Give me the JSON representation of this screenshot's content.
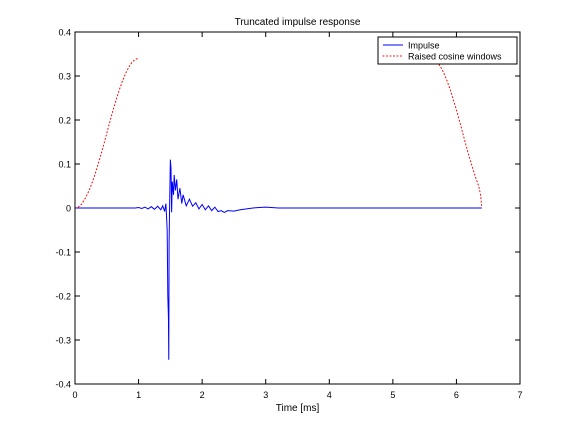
{
  "chart_data": {
    "type": "line",
    "title": "Truncated impulse response",
    "xlabel": "Time [ms]",
    "ylabel": "",
    "xlim": [
      0,
      7
    ],
    "ylim": [
      -0.4,
      0.4
    ],
    "x_ticks": [
      "0",
      "1",
      "2",
      "3",
      "4",
      "5",
      "6",
      "7"
    ],
    "y_ticks": [
      "0.4",
      "0.3",
      "0.2",
      "0.1",
      "0",
      "-0.1",
      "-0.2",
      "-0.3",
      "-0.4"
    ],
    "legend_position": "top-right",
    "series": [
      {
        "name": "Impulse",
        "color": "#0000ff",
        "style": "solid",
        "points": [
          [
            0,
            0
          ],
          [
            0.5,
            0
          ],
          [
            0.95,
            0
          ],
          [
            1.0,
            0.001
          ],
          [
            1.05,
            -0.001
          ],
          [
            1.1,
            0.002
          ],
          [
            1.15,
            -0.002
          ],
          [
            1.2,
            0.003
          ],
          [
            1.25,
            -0.003
          ],
          [
            1.3,
            0.004
          ],
          [
            1.35,
            -0.004
          ],
          [
            1.38,
            0.005
          ],
          [
            1.41,
            -0.008
          ],
          [
            1.43,
            0.01
          ],
          [
            1.45,
            -0.05
          ],
          [
            1.46,
            -0.2
          ],
          [
            1.47,
            -0.25
          ],
          [
            1.475,
            -0.345
          ],
          [
            1.48,
            -0.08
          ],
          [
            1.49,
            0.02
          ],
          [
            1.5,
            0.11
          ],
          [
            1.51,
            0.09
          ],
          [
            1.52,
            -0.01
          ],
          [
            1.53,
            0.06
          ],
          [
            1.55,
            0.03
          ],
          [
            1.56,
            0.075
          ],
          [
            1.58,
            0.04
          ],
          [
            1.6,
            0.065
          ],
          [
            1.62,
            0.02
          ],
          [
            1.65,
            0.045
          ],
          [
            1.68,
            0.01
          ],
          [
            1.7,
            0.03
          ],
          [
            1.75,
            0.005
          ],
          [
            1.8,
            0.02
          ],
          [
            1.85,
            0.004
          ],
          [
            1.9,
            0.012
          ],
          [
            1.95,
            -0.002
          ],
          [
            2.0,
            0.008
          ],
          [
            2.05,
            -0.004
          ],
          [
            2.1,
            0.005
          ],
          [
            2.15,
            -0.006
          ],
          [
            2.2,
            0.002
          ],
          [
            2.25,
            -0.008
          ],
          [
            2.3,
            -0.006
          ],
          [
            2.35,
            -0.01
          ],
          [
            2.4,
            -0.006
          ],
          [
            2.5,
            -0.007
          ],
          [
            2.6,
            -0.004
          ],
          [
            2.7,
            -0.002
          ],
          [
            2.8,
            0
          ],
          [
            2.9,
            0.001
          ],
          [
            3.0,
            0.002
          ],
          [
            3.2,
            0
          ],
          [
            4.0,
            0
          ],
          [
            5.0,
            0
          ],
          [
            6.0,
            0
          ],
          [
            6.4,
            0
          ]
        ]
      },
      {
        "name": "Raised cosine windows",
        "color": "#ff0000",
        "style": "dotted",
        "points": [
          [
            0.0,
            0.0
          ],
          [
            0.05,
            0.002
          ],
          [
            0.1,
            0.008
          ],
          [
            0.15,
            0.019
          ],
          [
            0.2,
            0.033
          ],
          [
            0.25,
            0.05
          ],
          [
            0.3,
            0.07
          ],
          [
            0.35,
            0.093
          ],
          [
            0.4,
            0.117
          ],
          [
            0.45,
            0.143
          ],
          [
            0.5,
            0.17
          ],
          [
            0.55,
            0.197
          ],
          [
            0.6,
            0.223
          ],
          [
            0.65,
            0.247
          ],
          [
            0.7,
            0.27
          ],
          [
            0.75,
            0.29
          ],
          [
            0.8,
            0.307
          ],
          [
            0.85,
            0.321
          ],
          [
            0.9,
            0.332
          ],
          [
            0.95,
            0.338
          ],
          [
            1.0,
            0.34
          ],
          [
            null,
            null
          ],
          [
            5.6,
            0.34
          ],
          [
            5.65,
            0.338
          ],
          [
            5.7,
            0.332
          ],
          [
            5.75,
            0.321
          ],
          [
            5.8,
            0.307
          ],
          [
            5.85,
            0.29
          ],
          [
            5.9,
            0.27
          ],
          [
            5.95,
            0.247
          ],
          [
            6.0,
            0.223
          ],
          [
            6.05,
            0.197
          ],
          [
            6.1,
            0.17
          ],
          [
            6.15,
            0.143
          ],
          [
            6.2,
            0.117
          ],
          [
            6.25,
            0.093
          ],
          [
            6.3,
            0.07
          ],
          [
            6.35,
            0.05
          ],
          [
            6.38,
            0.03
          ],
          [
            6.4,
            0.0
          ]
        ]
      }
    ]
  }
}
